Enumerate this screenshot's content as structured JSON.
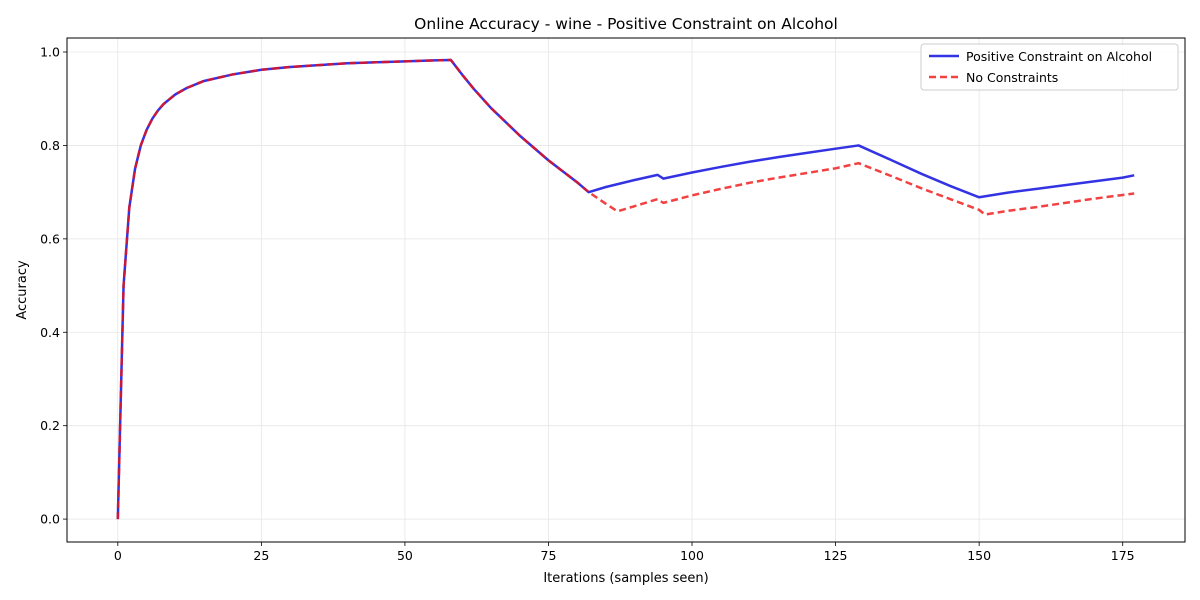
{
  "chart_data": {
    "type": "line",
    "title": "Online Accuracy - wine - Positive Constraint on Alcohol",
    "xlabel": "Iterations (samples seen)",
    "ylabel": "Accuracy",
    "xlim": [
      -8.85,
      185.85
    ],
    "ylim": [
      -0.049,
      1.03
    ],
    "xticks": [
      0,
      25,
      50,
      75,
      100,
      125,
      150,
      175
    ],
    "yticks": [
      0.0,
      0.2,
      0.4,
      0.6,
      0.8,
      1.0
    ],
    "xtick_labels": [
      "0",
      "25",
      "50",
      "75",
      "100",
      "125",
      "150",
      "175"
    ],
    "ytick_labels": [
      "0.0",
      "0.2",
      "0.4",
      "0.6",
      "0.8",
      "1.0"
    ],
    "grid": true,
    "legend_position": "top-right",
    "series": [
      {
        "name": "Positive Constraint on Alcohol",
        "color": "#0000dd",
        "style": "solid",
        "x": [
          0,
          1,
          2,
          3,
          4,
          5,
          6,
          7,
          8,
          10,
          12,
          15,
          20,
          25,
          30,
          35,
          40,
          45,
          50,
          55,
          58,
          60,
          62,
          65,
          70,
          75,
          80,
          82,
          85,
          90,
          94,
          95,
          100,
          105,
          110,
          115,
          120,
          125,
          129,
          135,
          140,
          145,
          150,
          155,
          160,
          165,
          170,
          175,
          177
        ],
        "y": [
          0.0,
          0.5,
          0.667,
          0.75,
          0.8,
          0.833,
          0.857,
          0.875,
          0.889,
          0.909,
          0.923,
          0.938,
          0.952,
          0.962,
          0.968,
          0.972,
          0.976,
          0.978,
          0.98,
          0.982,
          0.983,
          0.951,
          0.921,
          0.88,
          0.821,
          0.768,
          0.721,
          0.7,
          0.711,
          0.726,
          0.737,
          0.729,
          0.742,
          0.754,
          0.765,
          0.775,
          0.784,
          0.793,
          0.8,
          0.767,
          0.739,
          0.713,
          0.689,
          0.699,
          0.707,
          0.715,
          0.723,
          0.731,
          0.736
        ]
      },
      {
        "name": "No Constraints",
        "color": "#ee1111",
        "style": "dashed",
        "x": [
          0,
          1,
          2,
          3,
          4,
          5,
          6,
          7,
          8,
          10,
          12,
          15,
          20,
          25,
          30,
          35,
          40,
          45,
          50,
          55,
          58,
          60,
          62,
          65,
          70,
          75,
          80,
          82,
          85,
          87,
          90,
          94,
          95,
          100,
          105,
          110,
          115,
          120,
          125,
          129,
          135,
          140,
          145,
          150,
          151,
          155,
          160,
          165,
          170,
          175,
          177
        ],
        "y": [
          0.0,
          0.5,
          0.667,
          0.75,
          0.8,
          0.833,
          0.857,
          0.875,
          0.889,
          0.909,
          0.923,
          0.938,
          0.952,
          0.962,
          0.968,
          0.972,
          0.976,
          0.978,
          0.98,
          0.982,
          0.983,
          0.951,
          0.921,
          0.88,
          0.821,
          0.768,
          0.721,
          0.7,
          0.675,
          0.659,
          0.67,
          0.685,
          0.677,
          0.693,
          0.707,
          0.72,
          0.731,
          0.741,
          0.751,
          0.762,
          0.733,
          0.708,
          0.685,
          0.662,
          0.652,
          0.66,
          0.668,
          0.677,
          0.686,
          0.694,
          0.697
        ]
      }
    ]
  }
}
